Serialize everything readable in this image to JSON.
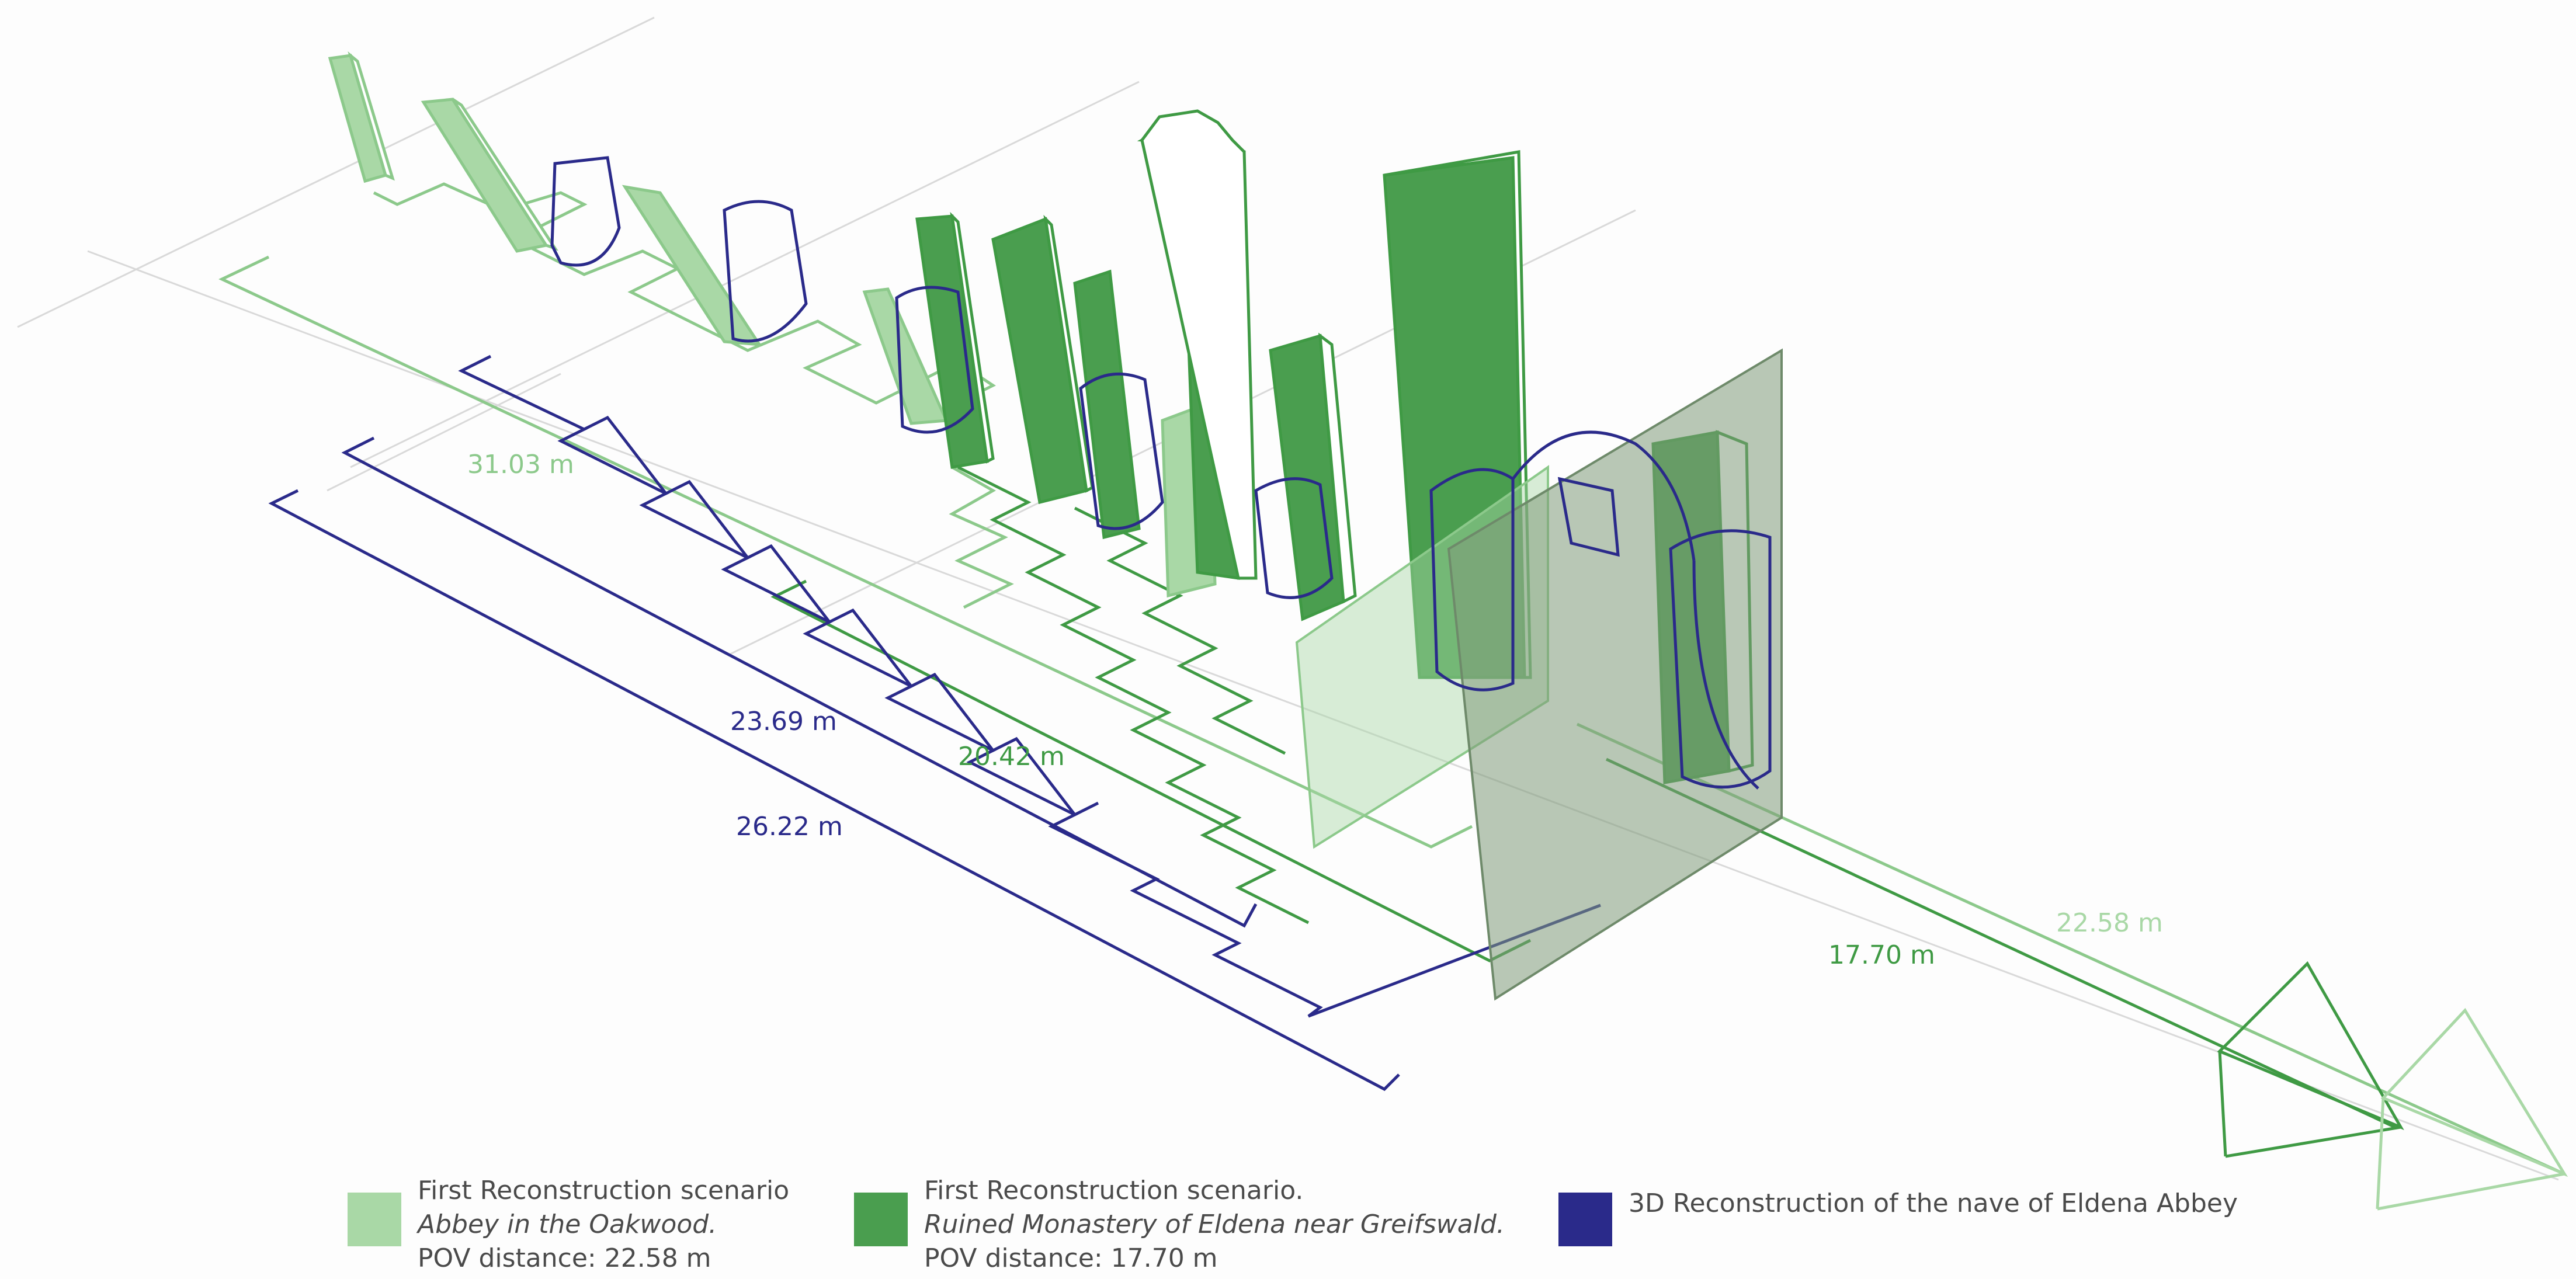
{
  "colors": {
    "light_green": "#8cc98b",
    "light_green_fill": "#a9d8a6",
    "dark_green": "#3f9a44",
    "dark_green_fill": "#4a9e4f",
    "navy": "#2a2a8a",
    "grey_plane": "#7f9a7a"
  },
  "dimensions": {
    "d1": "31.03 m",
    "d2": "23.69  m",
    "d3": "20.42  m",
    "d4": "26.22 m",
    "d5": "17.70 m",
    "d6": "22.58 m"
  },
  "legend": [
    {
      "line1": "First Reconstruction scenario",
      "line2": "Abbey in the Oakwood.",
      "line3": "POV distance: 22.58 m",
      "color": "#a9d8a6"
    },
    {
      "line1": "First Reconstruction scenario.",
      "line2": "Ruined Monastery of Eldena near Greifswald.",
      "line3": "POV distance: 17.70 m",
      "color": "#4a9e4f"
    },
    {
      "line1": "3D Reconstruction of the nave of Eldena Abbey",
      "color": "#2a2a8a"
    }
  ]
}
